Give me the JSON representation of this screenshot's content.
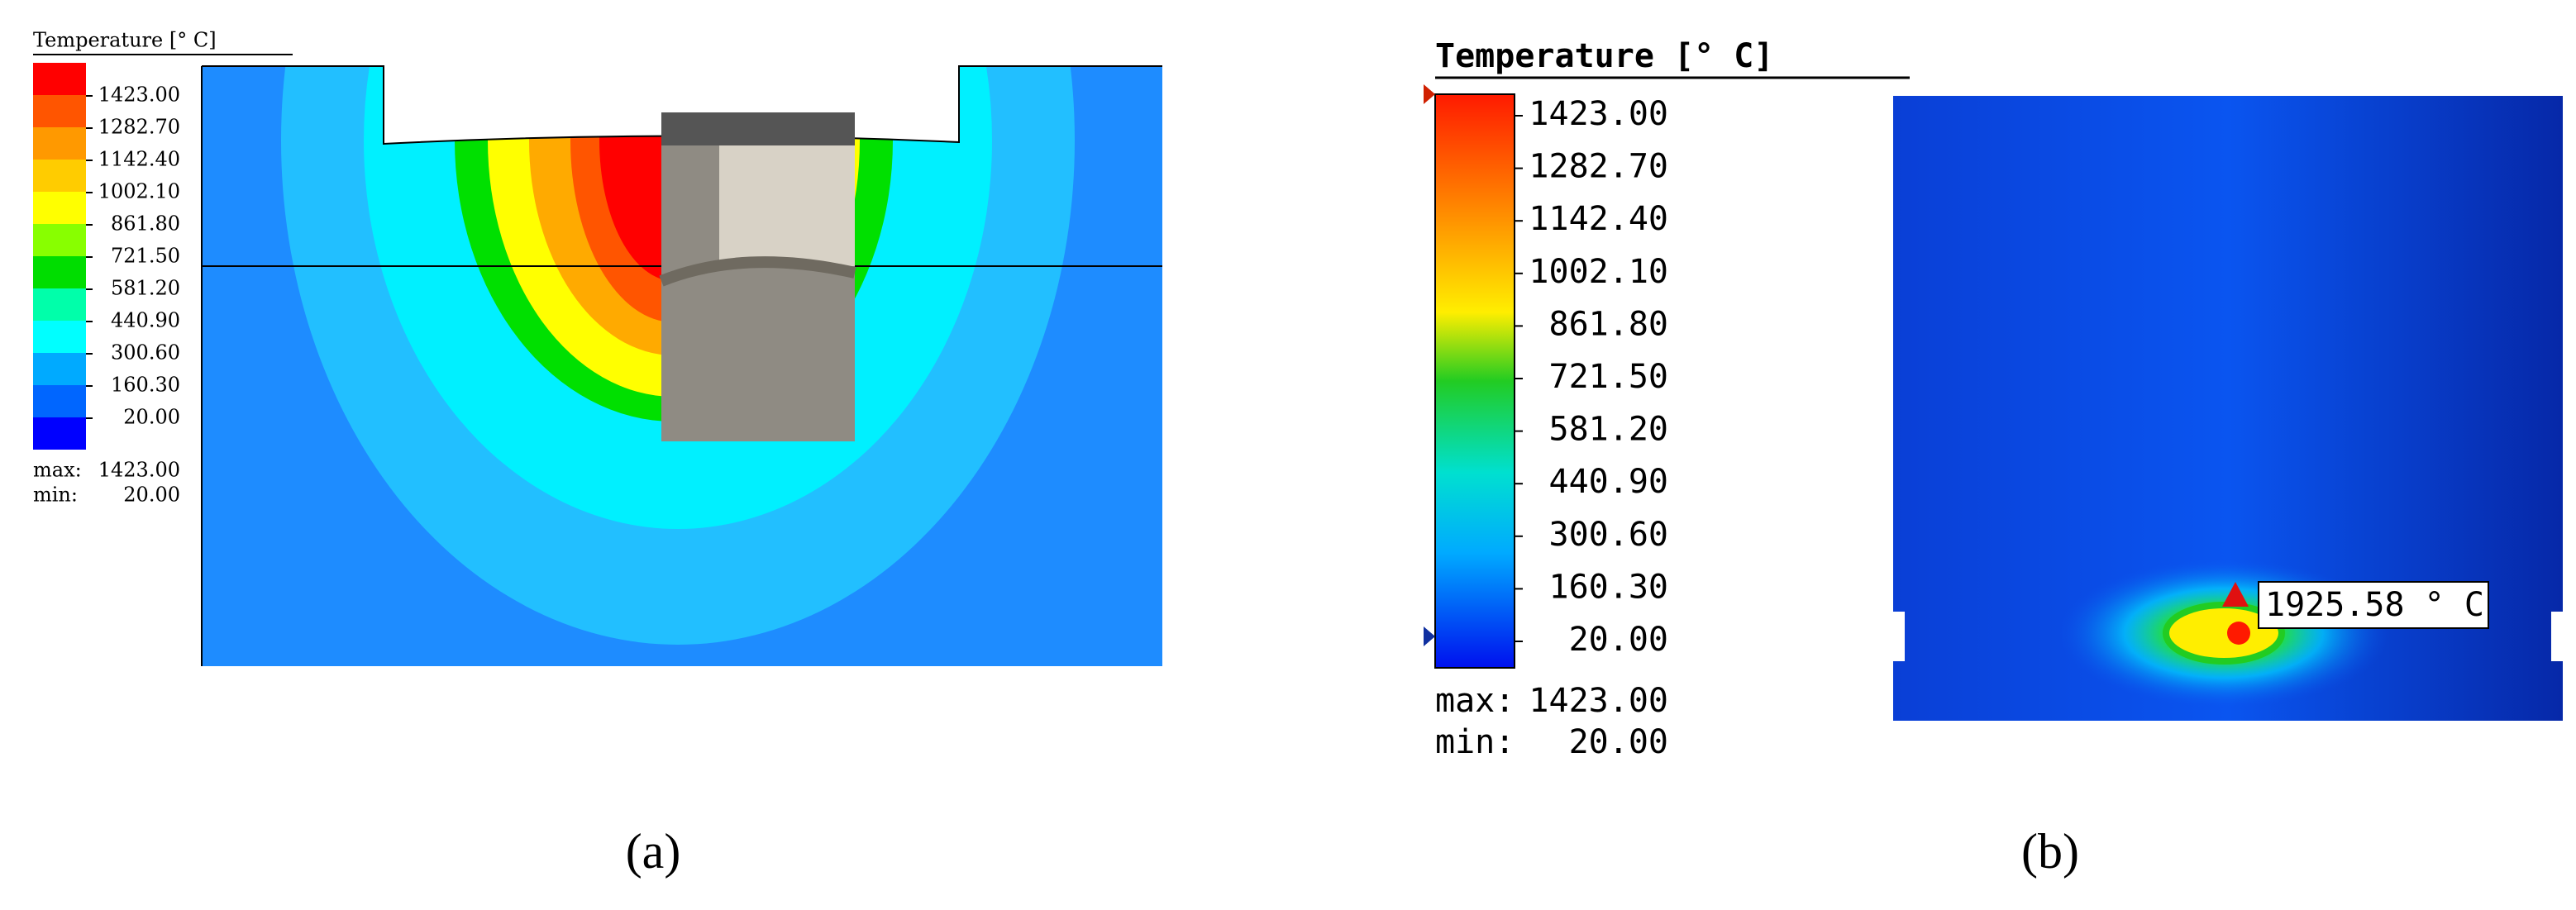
{
  "panel_a": {
    "legend_title": "Temperature [° C]",
    "legend_labels": [
      "1423.00",
      "1282.70",
      "1142.40",
      "1002.10",
      "861.80",
      "721.50",
      "581.20",
      "440.90",
      "300.60",
      "160.30",
      "20.00"
    ],
    "max_label": "max:",
    "max_value": "1423.00",
    "min_label": "min:",
    "min_value": "20.00",
    "caption": "(a)"
  },
  "panel_b": {
    "legend_title": "Temperature [° C]",
    "legend_labels": [
      "1423.00",
      "1282.70",
      "1142.40",
      "1002.10",
      "861.80",
      "721.50",
      "581.20",
      "440.90",
      "300.60",
      "160.30",
      "20.00"
    ],
    "max_label": "max:",
    "max_value": "1423.00",
    "min_label": "min:",
    "min_value": "20.00",
    "annotation": "1925.58 ° C",
    "caption": "(b)"
  }
}
